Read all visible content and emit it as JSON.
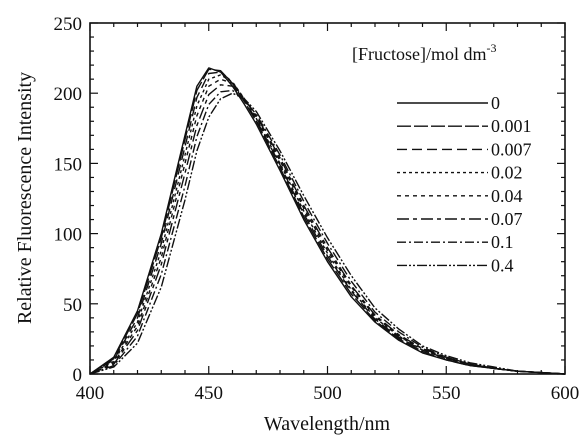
{
  "chart_data": {
    "type": "line",
    "xlabel": "Wavelength/nm",
    "ylabel": "Relative Fluorescence Intensity",
    "xlim": [
      400,
      600
    ],
    "ylim": [
      0,
      250
    ],
    "xticks": [
      "400",
      "450",
      "500",
      "550",
      "600"
    ],
    "yticks": [
      "0",
      "50",
      "100",
      "150",
      "200",
      "250"
    ],
    "grid": false,
    "legend": {
      "title_main": "[Fructose]/mol dm",
      "title_sup": "-3",
      "placement": "top-right"
    },
    "x": [
      400,
      410,
      420,
      430,
      440,
      445,
      450,
      455,
      460,
      465,
      470,
      480,
      490,
      500,
      510,
      520,
      530,
      540,
      550,
      560,
      570,
      580,
      590,
      600
    ],
    "series": [
      {
        "name": "0",
        "dash": "",
        "values": [
          0,
          12,
          45,
          100,
          170,
          205,
          218,
          215,
          205,
          192,
          178,
          145,
          110,
          80,
          55,
          37,
          24,
          15,
          10,
          6,
          4,
          2,
          1,
          0
        ]
      },
      {
        "name": "0.001",
        "dash": "14 3",
        "values": [
          0,
          11,
          43,
          97,
          167,
          202,
          217,
          216,
          207,
          194,
          180,
          147,
          112,
          82,
          57,
          38,
          25,
          16,
          10,
          6,
          4,
          2,
          1,
          0
        ]
      },
      {
        "name": "0.007",
        "dash": "10 5",
        "values": [
          0,
          10,
          40,
          93,
          162,
          197,
          214,
          215,
          208,
          195,
          181,
          149,
          114,
          84,
          59,
          39,
          26,
          17,
          11,
          7,
          4,
          2,
          1,
          0
        ]
      },
      {
        "name": "0.02",
        "dash": "3 3",
        "values": [
          0,
          9,
          37,
          88,
          156,
          191,
          210,
          213,
          208,
          196,
          182,
          150,
          116,
          86,
          60,
          40,
          27,
          17,
          11,
          7,
          4,
          2,
          1,
          0
        ]
      },
      {
        "name": "0.04",
        "dash": "4 4",
        "values": [
          0,
          8,
          34,
          83,
          150,
          184,
          205,
          210,
          207,
          196,
          183,
          152,
          118,
          88,
          62,
          41,
          27,
          18,
          11,
          7,
          4,
          2,
          1,
          0
        ]
      },
      {
        "name": "0.07",
        "dash": "12 4 4 4",
        "values": [
          0,
          7,
          31,
          78,
          143,
          177,
          199,
          206,
          205,
          196,
          184,
          154,
          120,
          90,
          63,
          42,
          28,
          18,
          12,
          7,
          4,
          2,
          1,
          0
        ]
      },
      {
        "name": "0.1",
        "dash": "9 3 2 3",
        "values": [
          0,
          6,
          27,
          71,
          134,
          169,
          192,
          201,
          202,
          195,
          185,
          156,
          123,
          93,
          66,
          44,
          30,
          19,
          12,
          7,
          4,
          2,
          1,
          0
        ]
      },
      {
        "name": "0.4",
        "dash": "10 2 2 2 2 2",
        "values": [
          0,
          5,
          22,
          62,
          124,
          159,
          183,
          196,
          200,
          196,
          187,
          159,
          127,
          97,
          70,
          47,
          32,
          20,
          13,
          8,
          5,
          2,
          1,
          0
        ]
      }
    ]
  }
}
